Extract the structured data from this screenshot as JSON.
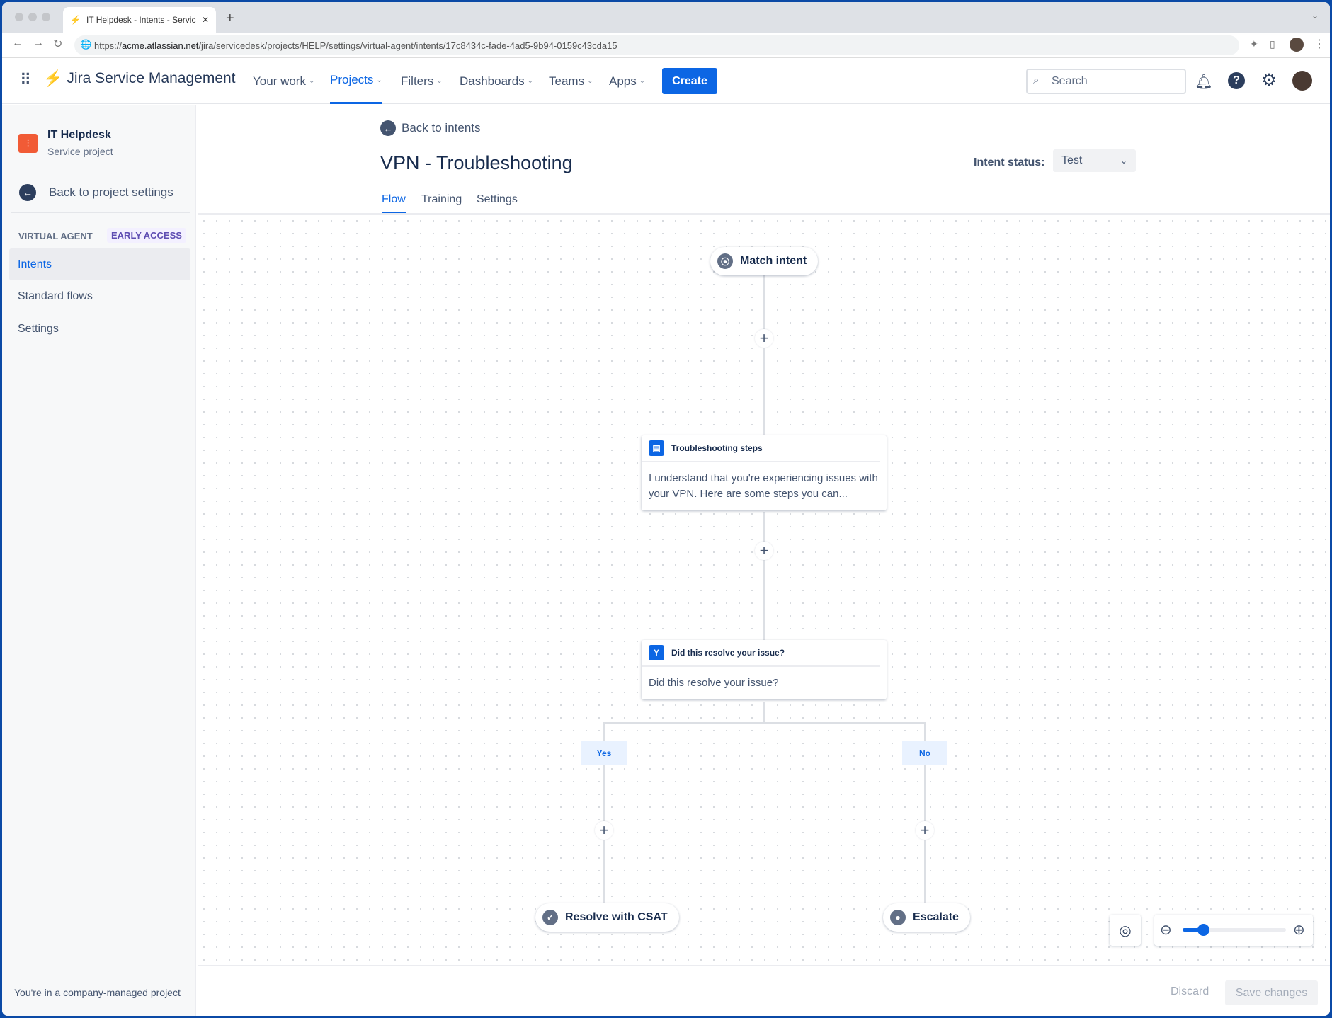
{
  "browser": {
    "tab_title": "IT Helpdesk - Intents - Service",
    "url_scheme": "https://",
    "url_host": "acme.atlassian.net",
    "url_path": "/jira/servicedesk/projects/HELP/settings/virtual-agent/intents/17c8434c-fade-4ad5-9b94-0159c43cda15"
  },
  "nav": {
    "product": "Jira Service Management",
    "items": [
      {
        "label": "Your work"
      },
      {
        "label": "Projects",
        "active": true
      },
      {
        "label": "Filters"
      },
      {
        "label": "Dashboards"
      },
      {
        "label": "Teams"
      },
      {
        "label": "Apps"
      }
    ],
    "create": "Create",
    "search_placeholder": "Search"
  },
  "sidebar": {
    "project_name": "IT Helpdesk",
    "project_type": "Service project",
    "back": "Back to project settings",
    "section": "VIRTUAL AGENT",
    "badge": "EARLY ACCESS",
    "items": [
      {
        "label": "Intents",
        "active": true
      },
      {
        "label": "Standard flows"
      },
      {
        "label": "Settings"
      }
    ],
    "footer": "You're in a company-managed project"
  },
  "page": {
    "back": "Back to intents",
    "title": "VPN - Troubleshooting",
    "status_label": "Intent status:",
    "status_value": "Test",
    "tabs": [
      {
        "label": "Flow",
        "active": true
      },
      {
        "label": "Training"
      },
      {
        "label": "Settings"
      }
    ]
  },
  "flow": {
    "start": "Match intent",
    "card1": {
      "title": "Troubleshooting steps",
      "body": "I understand that you're experiencing issues with your VPN. Here are some steps you can..."
    },
    "card2": {
      "title": "Did this resolve your issue?",
      "body": "Did this resolve your issue?"
    },
    "branch_yes": "Yes",
    "branch_no": "No",
    "end_yes": "Resolve with CSAT",
    "end_no": "Escalate"
  },
  "zoom": {
    "level_percent": 20
  },
  "footer": {
    "discard": "Discard",
    "save": "Save changes"
  },
  "colors": {
    "accent": "#0c66e4",
    "project_icon": "#f15b36"
  }
}
